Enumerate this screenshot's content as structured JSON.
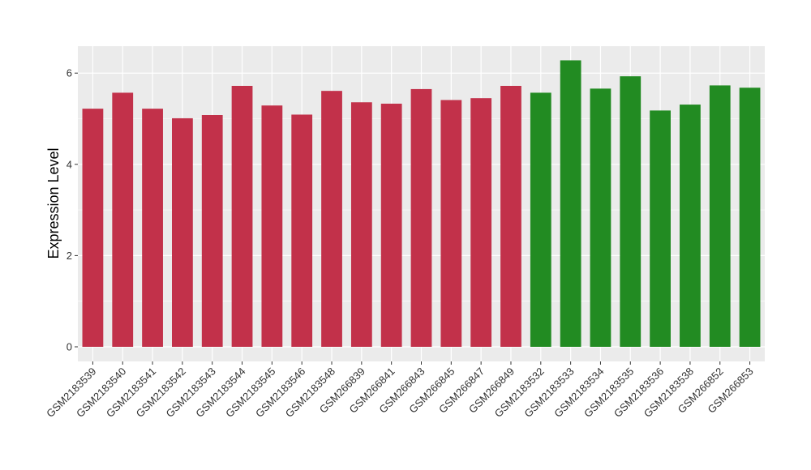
{
  "chart_data": {
    "type": "bar",
    "title": "",
    "xlabel": "",
    "ylabel": "Expression Level",
    "ylim": [
      -0.32,
      6.59
    ],
    "yticks": [
      0,
      2,
      4,
      6
    ],
    "grid": true,
    "categories": [
      "GSM2183539",
      "GSM2183540",
      "GSM2183541",
      "GSM2183542",
      "GSM2183543",
      "GSM2183544",
      "GSM2183545",
      "GSM2183546",
      "GSM2183548",
      "GSM266839",
      "GSM266841",
      "GSM266843",
      "GSM266845",
      "GSM266847",
      "GSM266849",
      "GSM2183532",
      "GSM2183533",
      "GSM2183534",
      "GSM2183535",
      "GSM2183536",
      "GSM2183538",
      "GSM266852",
      "GSM266853"
    ],
    "values": [
      5.22,
      5.57,
      5.22,
      5.01,
      5.08,
      5.72,
      5.29,
      5.09,
      5.61,
      5.36,
      5.33,
      5.65,
      5.41,
      5.45,
      5.72,
      5.57,
      6.28,
      5.66,
      5.93,
      5.18,
      5.31,
      5.73,
      5.68
    ],
    "group_colors": [
      "#C2314A",
      "#C2314A",
      "#C2314A",
      "#C2314A",
      "#C2314A",
      "#C2314A",
      "#C2314A",
      "#C2314A",
      "#C2314A",
      "#C2314A",
      "#C2314A",
      "#C2314A",
      "#C2314A",
      "#C2314A",
      "#C2314A",
      "#228B22",
      "#228B22",
      "#228B22",
      "#228B22",
      "#228B22",
      "#228B22",
      "#228B22",
      "#228B22"
    ],
    "panel_background": "#EBEBEB"
  }
}
